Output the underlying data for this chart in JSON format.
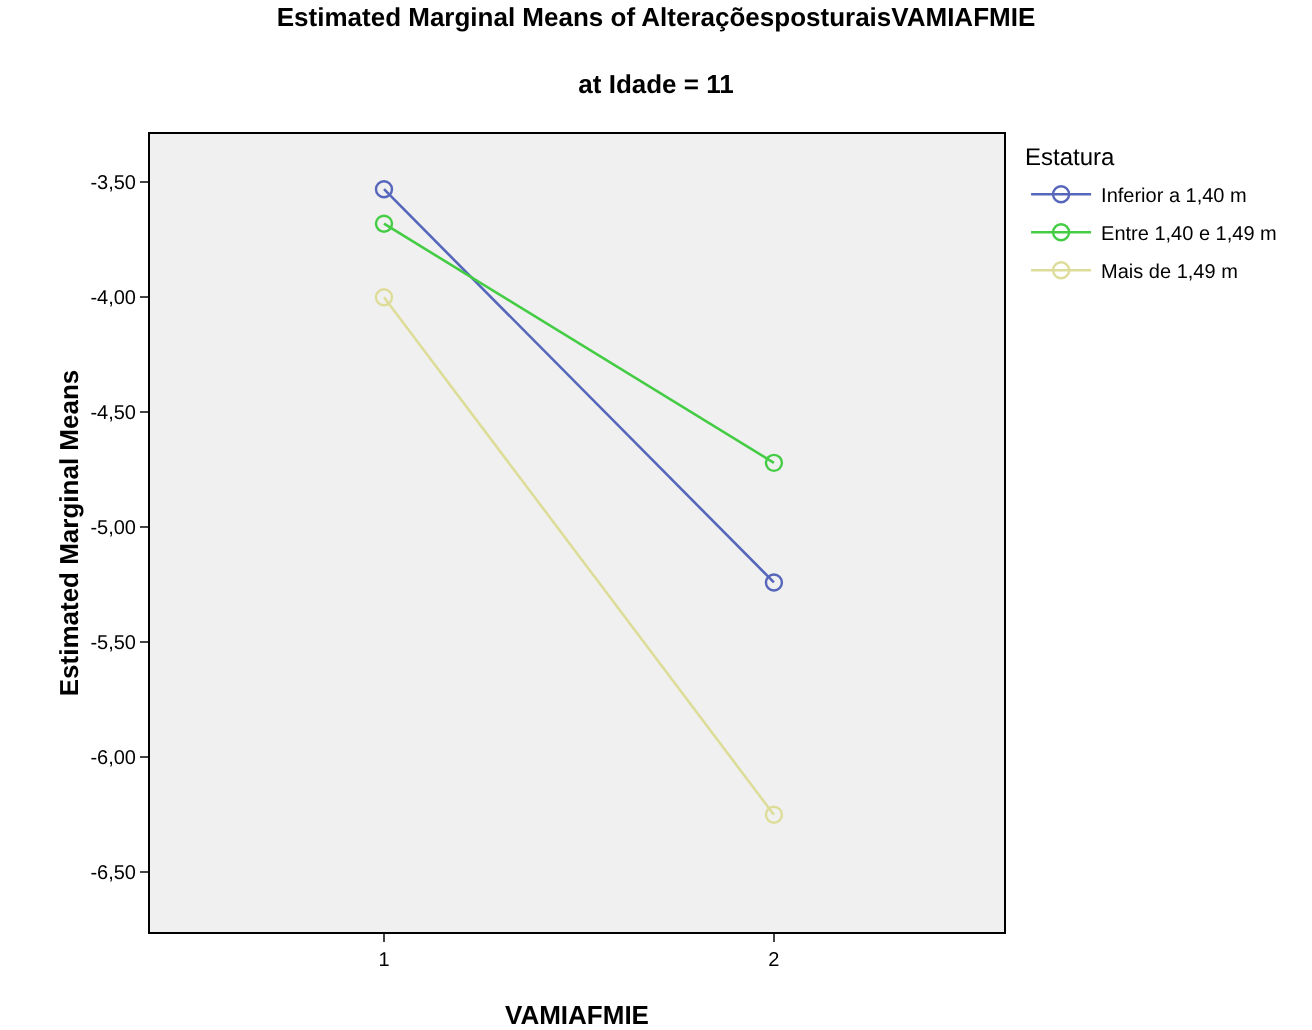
{
  "chart_data": {
    "type": "line",
    "title": "Estimated Marginal Means of AlteraçõesposturaisVAMIAFMIE",
    "subtitle": "at Idade = 11",
    "xlabel": "VAMIAFMIE",
    "ylabel": "Estimated Marginal Means",
    "legend_title": "Estatura",
    "categories": [
      "1",
      "2"
    ],
    "series": [
      {
        "name": "Inferior a 1,40 m",
        "color": "#5566bb",
        "values": [
          -3.53,
          -5.24
        ]
      },
      {
        "name": "Entre 1,40 e 1,49 m",
        "color": "#44cc44",
        "values": [
          -3.68,
          -4.72
        ]
      },
      {
        "name": "Mais de 1,49 m",
        "color": "#dddd99",
        "values": [
          -4.0,
          -6.25
        ]
      }
    ],
    "ylim": [
      -6.76,
      -3.29
    ],
    "yticks": [
      {
        "value": -3.5,
        "label": "-3,50"
      },
      {
        "value": -4,
        "label": "-4,00"
      },
      {
        "value": -4.5,
        "label": "-4,50"
      },
      {
        "value": -5,
        "label": "-5,00"
      },
      {
        "value": -5.5,
        "label": "-5,50"
      },
      {
        "value": -6,
        "label": "-6,00"
      },
      {
        "value": -6.5,
        "label": "-6,50"
      }
    ],
    "legend": "top right",
    "marker": "circle",
    "line_style": "solid"
  }
}
